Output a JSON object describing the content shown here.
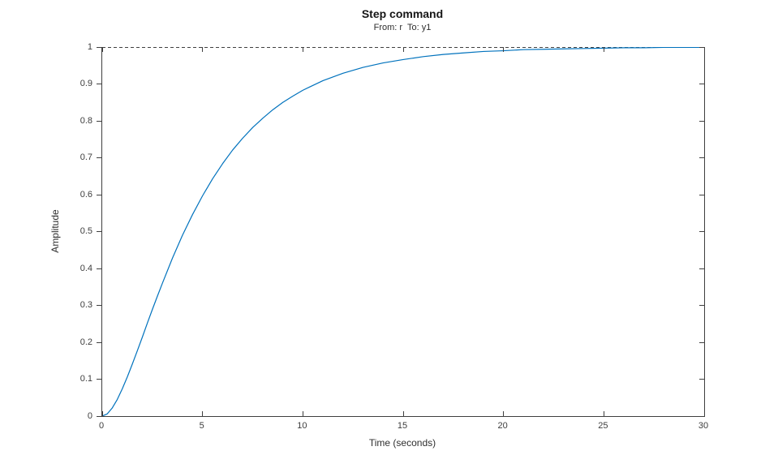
{
  "figure": {
    "title": "Step command",
    "subtitle": "From: r  To: y1",
    "xlabel": "Time (seconds)",
    "ylabel": "Amplitude",
    "colors": {
      "line": "#0072BD",
      "axis": "#3f3f3f",
      "tick_text": "#3d3d3d",
      "steady_state_line": "#404040",
      "background": "#ffffff"
    }
  },
  "chart_data": {
    "type": "line",
    "title": "Step command",
    "subtitle": "From: r  To: y1",
    "xlabel": "Time (seconds)",
    "ylabel": "Amplitude",
    "xlim": [
      0,
      30
    ],
    "ylim": [
      0,
      1
    ],
    "x_ticks": [
      0,
      5,
      10,
      15,
      20,
      25,
      30
    ],
    "x_tick_labels": [
      "0",
      "5",
      "10",
      "15",
      "20",
      "25",
      "30"
    ],
    "y_ticks": [
      0,
      0.1,
      0.2,
      0.3,
      0.4,
      0.5,
      0.6,
      0.7,
      0.8,
      0.9,
      1
    ],
    "y_tick_labels": [
      "0",
      "0.1",
      "0.2",
      "0.3",
      "0.4",
      "0.5",
      "0.6",
      "0.7",
      "0.8",
      "0.9",
      "1"
    ],
    "grid": false,
    "legend": "none",
    "series": [
      {
        "name": "step-response-r-to-y1",
        "style": "solid",
        "color": "#0072BD",
        "x": [
          0,
          0.25,
          0.5,
          0.75,
          1,
          1.25,
          1.5,
          1.75,
          2,
          2.25,
          2.5,
          2.75,
          3,
          3.5,
          4,
          4.5,
          5,
          5.5,
          6,
          6.5,
          7,
          7.5,
          8,
          8.5,
          9,
          9.5,
          10,
          11,
          12,
          13,
          14,
          15,
          16,
          17,
          18,
          19,
          20,
          21,
          22,
          23,
          24,
          25,
          26,
          27,
          28,
          29,
          30
        ],
        "y": [
          0,
          0.006,
          0.022,
          0.045,
          0.074,
          0.106,
          0.141,
          0.177,
          0.214,
          0.252,
          0.289,
          0.325,
          0.36,
          0.428,
          0.49,
          0.546,
          0.597,
          0.643,
          0.684,
          0.721,
          0.753,
          0.782,
          0.807,
          0.83,
          0.85,
          0.867,
          0.883,
          0.909,
          0.929,
          0.945,
          0.957,
          0.966,
          0.974,
          0.98,
          0.984,
          0.988,
          0.99,
          0.993,
          0.994,
          0.995,
          0.996,
          0.997,
          0.998,
          0.998,
          0.999,
          0.999,
          0.999
        ],
        "final_value": 1
      },
      {
        "name": "steady-state-line",
        "style": "dashed",
        "color": "#404040",
        "x": [
          0,
          30
        ],
        "y": [
          1,
          1
        ]
      }
    ]
  }
}
